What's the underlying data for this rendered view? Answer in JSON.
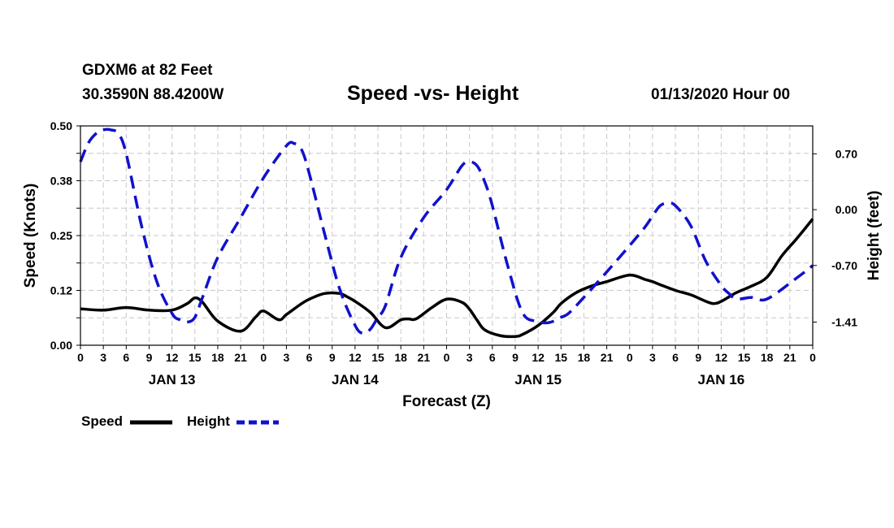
{
  "header": {
    "station": "GDXM6 at 82 Feet",
    "coords": "30.3590N 88.4200W",
    "title": "Speed -vs- Height",
    "run_time": "01/13/2020 Hour 00"
  },
  "legend": {
    "speed_label": "Speed",
    "height_label": "Height"
  },
  "colors": {
    "speed": "#000000",
    "height": "#1111cc",
    "grid": "#c8c8c8"
  },
  "chart_data": {
    "type": "line",
    "title": "Speed -vs- Height",
    "xlabel": "Forecast (Z)",
    "ylabel": "Speed (Knots)",
    "y2label": "Height (feet)",
    "xlim": [
      0,
      96
    ],
    "ylim": [
      0,
      0.5
    ],
    "y2lim": [
      -1.7,
      1.05
    ],
    "yticks": [
      "0.00",
      "0.12",
      "0.25",
      "0.38",
      "0.50"
    ],
    "y2ticks": [
      "-1.41",
      "-0.70",
      "0.00",
      "0.70"
    ],
    "xticks": [
      "0",
      "3",
      "6",
      "9",
      "12",
      "15",
      "18",
      "21",
      "0",
      "3",
      "6",
      "9",
      "12",
      "15",
      "18",
      "21",
      "0",
      "3",
      "6",
      "9",
      "12",
      "15",
      "18",
      "21",
      "0",
      "3",
      "6",
      "9",
      "12",
      "15",
      "18",
      "21",
      "0"
    ],
    "day_labels": [
      "JAN 13",
      "JAN 14",
      "JAN 15",
      "JAN 16"
    ],
    "day_label_hours": [
      12,
      36,
      60,
      84
    ],
    "grid": true,
    "legend_position": "bottom-left",
    "series": [
      {
        "name": "Speed",
        "axis": "left",
        "style": "solid",
        "x": [
          0,
          3,
          6,
          9,
          12,
          14,
          15,
          16,
          18,
          21,
          23,
          24,
          26,
          27,
          29,
          30,
          32,
          34,
          35,
          36,
          38,
          40,
          42,
          43,
          44,
          46,
          48,
          50,
          51,
          52,
          53,
          55,
          57,
          58,
          60,
          62,
          63,
          65,
          67,
          69,
          72,
          74,
          75,
          76,
          78,
          80,
          82,
          83,
          84,
          86,
          88,
          90,
          92,
          94,
          96
        ],
        "values": [
          0.083,
          0.08,
          0.086,
          0.08,
          0.08,
          0.095,
          0.108,
          0.098,
          0.055,
          0.032,
          0.065,
          0.078,
          0.058,
          0.07,
          0.095,
          0.105,
          0.118,
          0.118,
          0.11,
          0.1,
          0.075,
          0.04,
          0.058,
          0.06,
          0.06,
          0.085,
          0.105,
          0.098,
          0.082,
          0.057,
          0.035,
          0.022,
          0.02,
          0.025,
          0.045,
          0.075,
          0.095,
          0.12,
          0.135,
          0.145,
          0.16,
          0.15,
          0.145,
          0.138,
          0.125,
          0.115,
          0.1,
          0.095,
          0.1,
          0.12,
          0.135,
          0.155,
          0.205,
          0.245,
          0.288
        ]
      },
      {
        "name": "Height",
        "axis": "right",
        "style": "dashed",
        "x": [
          0,
          1,
          2,
          3,
          4,
          5,
          6,
          8,
          10,
          12,
          13,
          14,
          15,
          16,
          18,
          21,
          24,
          27,
          28,
          29,
          30,
          32,
          34,
          36,
          37,
          38,
          39,
          40,
          42,
          45,
          48,
          50,
          51,
          52,
          53,
          54,
          56,
          58,
          60,
          61,
          62,
          63,
          64,
          66,
          69,
          72,
          74,
          75,
          76,
          77,
          78,
          80,
          82,
          84,
          85,
          86,
          88,
          90,
          94,
          96
        ],
        "values": [
          0.6,
          0.83,
          0.95,
          1.0,
          1.0,
          0.95,
          0.7,
          -0.2,
          -0.9,
          -1.3,
          -1.38,
          -1.41,
          -1.35,
          -1.1,
          -0.6,
          -0.1,
          0.4,
          0.8,
          0.83,
          0.75,
          0.45,
          -0.3,
          -1.0,
          -1.45,
          -1.55,
          -1.5,
          -1.35,
          -1.2,
          -0.6,
          -0.1,
          0.25,
          0.55,
          0.6,
          0.55,
          0.35,
          0.05,
          -0.7,
          -1.3,
          -1.4,
          -1.42,
          -1.4,
          -1.35,
          -1.3,
          -1.1,
          -0.78,
          -0.45,
          -0.22,
          -0.08,
          0.05,
          0.08,
          0.05,
          -0.2,
          -0.65,
          -0.95,
          -1.05,
          -1.12,
          -1.1,
          -1.12,
          -0.85,
          -0.7
        ]
      }
    ]
  }
}
